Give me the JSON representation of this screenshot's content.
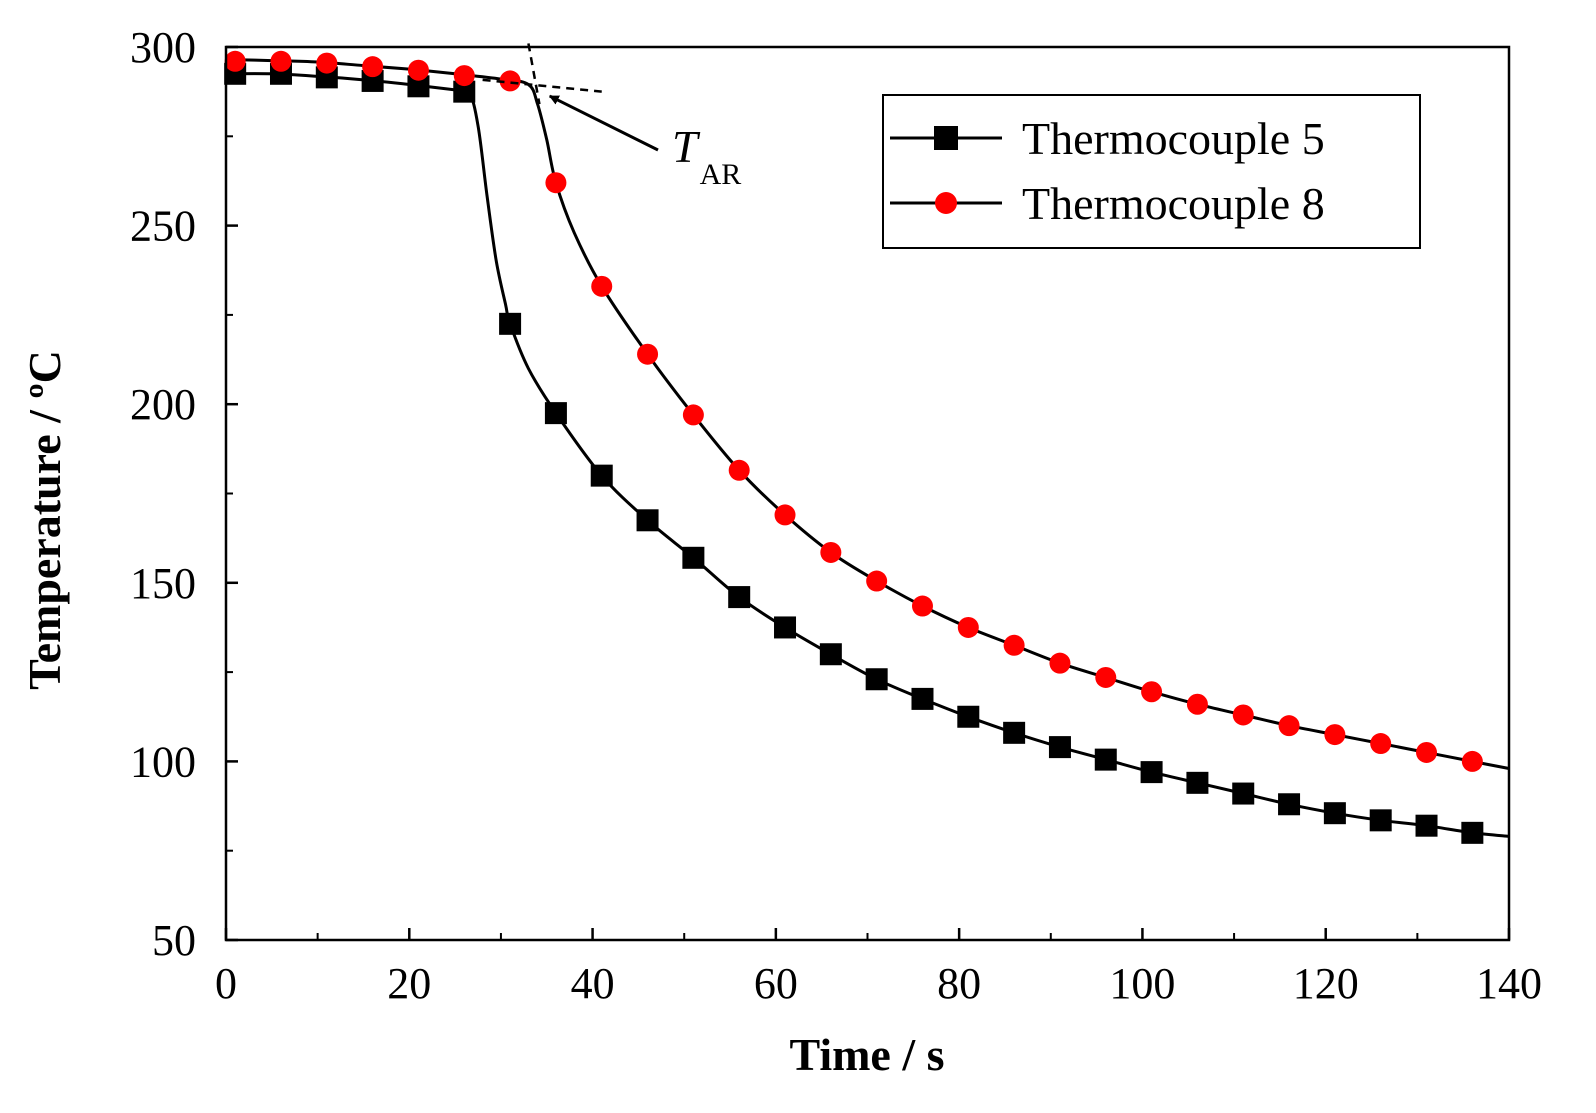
{
  "chart_data": {
    "type": "line",
    "title": "",
    "xlabel": "Time / s",
    "ylabel": "Temperature / ºC",
    "xlim": [
      0,
      140
    ],
    "ylim": [
      50,
      300
    ],
    "xticks": [
      0,
      20,
      40,
      60,
      80,
      100,
      120,
      140
    ],
    "xtick_labels": [
      "0",
      "20",
      "40",
      "60",
      "80",
      "100",
      "120",
      "140"
    ],
    "yticks": [
      50,
      100,
      150,
      200,
      250,
      300
    ],
    "ytick_labels": [
      "50",
      "100",
      "150",
      "200",
      "250",
      "300"
    ],
    "grid": false,
    "legend_position": "top-right",
    "series": [
      {
        "name": "Thermocouple 5",
        "marker": "square",
        "color": "#000000",
        "marker_color": "#000000",
        "x": [
          1,
          6,
          11,
          16,
          21,
          26,
          31,
          36,
          41,
          46,
          51,
          56,
          61,
          66,
          71,
          76,
          81,
          86,
          91,
          96,
          101,
          106,
          111,
          116,
          121,
          126,
          131,
          136
        ],
        "y": [
          292.5,
          292.5,
          291.5,
          290.5,
          289,
          287.5,
          222.5,
          197.5,
          180,
          167.5,
          157,
          146,
          137.5,
          130,
          123,
          117.5,
          112.5,
          108,
          104,
          100.5,
          97,
          94,
          91,
          88,
          85.5,
          83.5,
          82,
          80
        ],
        "curve_x": [
          0,
          5,
          10,
          15,
          20,
          25,
          26.5,
          27.5,
          28.5,
          29.5,
          30.5,
          31,
          33,
          36,
          41,
          46,
          51,
          56,
          61,
          66,
          71,
          76,
          81,
          86,
          91,
          96,
          101,
          106,
          111,
          116,
          121,
          126,
          131,
          136,
          140
        ],
        "curve_y": [
          292.5,
          292.5,
          291.8,
          290.8,
          289.5,
          288,
          287.5,
          278,
          258,
          240,
          228,
          222.5,
          210,
          197.5,
          180,
          167.5,
          157,
          146,
          137.5,
          130,
          123,
          117.5,
          112.5,
          108,
          104,
          100.5,
          97,
          94,
          91,
          88,
          85.5,
          83.5,
          82,
          80,
          79
        ]
      },
      {
        "name": "Thermocouple 8",
        "marker": "circle",
        "color": "#000000",
        "marker_color": "#ff0000",
        "x": [
          1,
          6,
          11,
          16,
          21,
          26,
          31,
          36,
          41,
          46,
          51,
          56,
          61,
          66,
          71,
          76,
          81,
          86,
          91,
          96,
          101,
          106,
          111,
          116,
          121,
          126,
          131,
          136
        ],
        "y": [
          296,
          296,
          295.5,
          294.5,
          293.5,
          292,
          290.5,
          262,
          233,
          214,
          197,
          181.5,
          169,
          158.5,
          150.5,
          143.5,
          137.5,
          132.5,
          127.5,
          123.5,
          119.5,
          116,
          113,
          110,
          107.5,
          105,
          102.5,
          100
        ],
        "curve_x": [
          0,
          5,
          10,
          15,
          20,
          25,
          30,
          33,
          34,
          35,
          36,
          38,
          41,
          46,
          51,
          56,
          61,
          66,
          71,
          76,
          81,
          86,
          91,
          96,
          101,
          106,
          111,
          116,
          121,
          126,
          131,
          136,
          140
        ],
        "curve_y": [
          296.5,
          296.2,
          295.8,
          294.8,
          293.8,
          292.5,
          291,
          289.5,
          284,
          274,
          262,
          248,
          233,
          214,
          197,
          181.5,
          169,
          158.5,
          150.5,
          143.5,
          137.5,
          132.5,
          127.5,
          123.5,
          119.5,
          116,
          113,
          110,
          107.5,
          105,
          102.5,
          100,
          98
        ]
      }
    ],
    "annotations": [
      {
        "text_main": "T",
        "text_sub": "AR",
        "arrow_to": [
          33.8,
          288.5
        ],
        "tangent_lines": [
          {
            "from": [
              33.0,
              301
            ],
            "to": [
              34.2,
              284
            ]
          },
          {
            "from": [
              28,
              290.8
            ],
            "to": [
              41,
              287.5
            ]
          }
        ]
      }
    ]
  }
}
